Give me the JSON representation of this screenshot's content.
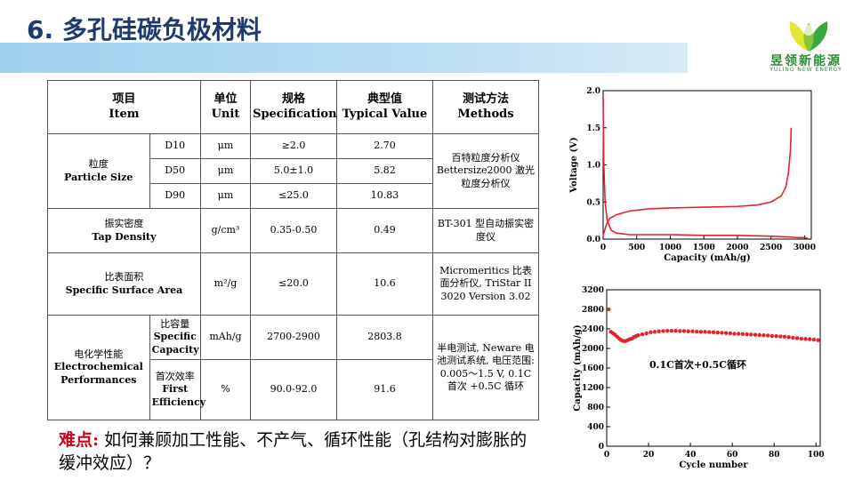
{
  "slide": {
    "title": "6. 多孔硅碳负极材料"
  },
  "logo": {
    "name_cn": "昱领新能源",
    "name_en": "YULING NEW ENERGY"
  },
  "table": {
    "headers": {
      "item": [
        "项目",
        "Item"
      ],
      "unit": [
        "单位",
        "Unit"
      ],
      "spec": [
        "规格",
        "Specification"
      ],
      "typical": [
        "典型值",
        "Typical Value"
      ],
      "method": [
        "测试方法",
        "Methods"
      ]
    },
    "particle_size": {
      "label_cn": "粒度",
      "label_en": "Particle Size",
      "rows": [
        {
          "sub": "D10",
          "unit": "μm",
          "spec": "≥2.0",
          "value": "2.70"
        },
        {
          "sub": "D50",
          "unit": "μm",
          "spec": "5.0±1.0",
          "value": "5.82"
        },
        {
          "sub": "D90",
          "unit": "μm",
          "spec": "≤25.0",
          "value": "10.83"
        }
      ],
      "method": "百特粒度分析仪 Bettersize2000 激光粒度分析仪"
    },
    "tap_density": {
      "label_cn": "振实密度",
      "label_en": "Tap Density",
      "unit": "g/cm³",
      "spec": "0.35-0.50",
      "value": "0.49",
      "method": "BT-301 型自动振实密度仪"
    },
    "surface_area": {
      "label_cn": "比表面积",
      "label_en": "Specific Surface Area",
      "unit": "m²/g",
      "spec": "≤20.0",
      "value": "10.6",
      "method": "Micromeritics 比表面分析仪, TriStar II 3020 Version 3.02"
    },
    "electrochem": {
      "label_cn": "电化学性能",
      "label_en": "Electrochemical Performances",
      "capacity": {
        "label_cn": "比容量",
        "label_en": "Specific Capacity",
        "unit": "mAh/g",
        "spec": "2700-2900",
        "value": "2803.8"
      },
      "efficiency": {
        "label_cn": "首次效率",
        "label_en": "First Efficiency",
        "unit": "%",
        "spec": "90.0-92.0",
        "value": "91.6"
      },
      "method": "半电测试, Neware 电池测试系统, 电压范围: 0.005～1.5 V, 0.1C 首次 +0.5C 循环"
    }
  },
  "note": {
    "label": "难点:",
    "text": "如何兼顾加工性能、不产气、循环性能（孔结构对膨胀的缓冲效应）？"
  },
  "chart_data": [
    {
      "type": "line",
      "xlabel": "Capacity (mAh/g)",
      "ylabel": "Voltage (V)",
      "xlim": [
        0,
        3100
      ],
      "ylim": [
        0,
        2.0
      ],
      "x_ticks": [
        "0",
        "500",
        "1000",
        "1500",
        "2000",
        "2500",
        "3000"
      ],
      "y_ticks": [
        "0.0",
        "0.5",
        "1.0",
        "1.5",
        "2.0"
      ],
      "series": [
        {
          "color": "#e8202a",
          "x": [
            0,
            10,
            30,
            60,
            120,
            200,
            400,
            700,
            1000,
            1500,
            2000,
            2500,
            2750,
            2900,
            3000,
            3050
          ],
          "y": [
            1.95,
            1.0,
            0.5,
            0.25,
            0.12,
            0.08,
            0.06,
            0.06,
            0.06,
            0.05,
            0.05,
            0.04,
            0.03,
            0.02,
            0.02,
            0.01
          ]
        },
        {
          "color": "#e8202a",
          "x": [
            0,
            50,
            100,
            200,
            400,
            700,
            1000,
            1500,
            2000,
            2300,
            2500,
            2650,
            2720,
            2760,
            2790,
            2800
          ],
          "y": [
            0.05,
            0.2,
            0.28,
            0.33,
            0.38,
            0.41,
            0.42,
            0.43,
            0.44,
            0.46,
            0.5,
            0.58,
            0.7,
            0.9,
            1.2,
            1.5
          ]
        }
      ]
    },
    {
      "type": "scatter",
      "xlabel": "Cycle number",
      "ylabel": "Capacity (mAh/g)",
      "xlim": [
        0,
        102
      ],
      "ylim": [
        0,
        3200
      ],
      "x_ticks": [
        "0",
        "20",
        "40",
        "60",
        "80",
        "100"
      ],
      "y_ticks": [
        "0",
        "400",
        "800",
        "1200",
        "1600",
        "2000",
        "2400",
        "2800",
        "3200"
      ],
      "annotation": "0.1C首次+0.5C循环",
      "series": [
        {
          "color": "#e8202a",
          "x": [
            1,
            2,
            3,
            4,
            5,
            6,
            7,
            8,
            9,
            10,
            11,
            12,
            13,
            14,
            15,
            17,
            19,
            21,
            23,
            25,
            27,
            29,
            31,
            33,
            35,
            37,
            39,
            41,
            43,
            45,
            47,
            49,
            51,
            53,
            55,
            57,
            59,
            61,
            63,
            65,
            67,
            69,
            71,
            73,
            75,
            77,
            79,
            81,
            83,
            85,
            87,
            89,
            91,
            93,
            95,
            97,
            99,
            101
          ],
          "y": [
            2800,
            2340,
            2310,
            2280,
            2240,
            2200,
            2170,
            2150,
            2150,
            2170,
            2190,
            2200,
            2230,
            2250,
            2270,
            2290,
            2310,
            2330,
            2340,
            2350,
            2355,
            2360,
            2360,
            2360,
            2355,
            2355,
            2350,
            2350,
            2345,
            2340,
            2340,
            2335,
            2330,
            2325,
            2320,
            2315,
            2310,
            2300,
            2300,
            2295,
            2290,
            2285,
            2280,
            2275,
            2270,
            2265,
            2255,
            2250,
            2245,
            2240,
            2230,
            2220,
            2210,
            2200,
            2195,
            2190,
            2180,
            2170
          ]
        }
      ]
    }
  ]
}
